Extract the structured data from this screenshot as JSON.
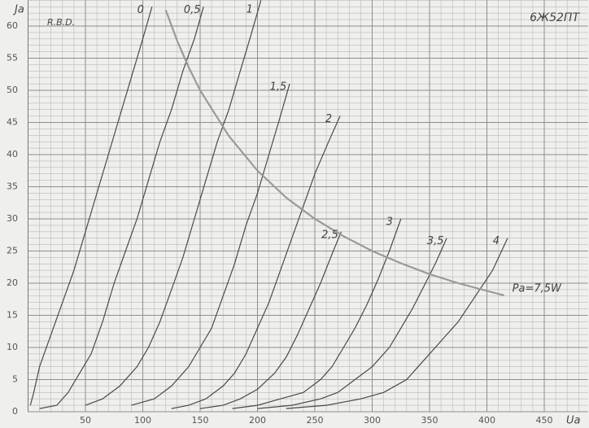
{
  "chart_data": {
    "type": "line",
    "title": "6Ж52ПТ",
    "note": "R.B.D.",
    "y_label": "Ja",
    "x_label": "Ua",
    "xlim": [
      0,
      488
    ],
    "ylim": [
      0,
      64
    ],
    "xticks": [
      50,
      100,
      150,
      200,
      250,
      300,
      350,
      400,
      450
    ],
    "yticks": [
      0,
      5,
      10,
      15,
      20,
      25,
      30,
      35,
      40,
      45,
      50,
      55,
      60
    ],
    "grid": true,
    "series": [
      {
        "name": "0",
        "color": "#4a4a4a",
        "x": [
          2,
          5,
          10,
          20,
          30,
          40,
          50,
          60,
          70,
          80,
          90,
          100,
          108
        ],
        "values": [
          1,
          3,
          7,
          12,
          17,
          22,
          28,
          34,
          40,
          46,
          52,
          58,
          63
        ]
      },
      {
        "name": "0,5",
        "color": "#4a4a4a",
        "x": [
          10,
          25,
          35,
          45,
          55,
          65,
          75,
          85,
          95,
          105,
          115,
          125,
          135,
          145,
          153
        ],
        "values": [
          0.5,
          1,
          3,
          6,
          9,
          14,
          20,
          25,
          30,
          36,
          42,
          47,
          53,
          58,
          63
        ]
      },
      {
        "name": "1",
        "color": "#4a4a4a",
        "x": [
          50,
          65,
          80,
          95,
          105,
          115,
          125,
          135,
          145,
          155,
          165,
          175,
          185,
          195,
          203
        ],
        "values": [
          1,
          2,
          4,
          7,
          10,
          14,
          19,
          24,
          30,
          36,
          42,
          47,
          53,
          59,
          64
        ]
      },
      {
        "name": "1,5",
        "color": "#4a4a4a",
        "x": [
          90,
          110,
          125,
          140,
          150,
          160,
          170,
          180,
          190,
          200,
          210,
          220,
          228
        ],
        "values": [
          1,
          2,
          4,
          7,
          10,
          13,
          18,
          23,
          29,
          34,
          40,
          46,
          51
        ]
      },
      {
        "name": "2",
        "color": "#4a4a4a",
        "x": [
          125,
          140,
          155,
          170,
          180,
          190,
          200,
          210,
          220,
          230,
          240,
          250,
          262,
          272
        ],
        "values": [
          0.5,
          1,
          2,
          4,
          6,
          9,
          13,
          17,
          22,
          27,
          32,
          37,
          42,
          46
        ]
      },
      {
        "name": "2,5",
        "color": "#4a4a4a",
        "x": [
          150,
          170,
          185,
          200,
          215,
          225,
          235,
          245,
          255,
          265,
          273
        ],
        "values": [
          0.5,
          1,
          2,
          3.5,
          6,
          8.5,
          12,
          16,
          20,
          24.5,
          28
        ]
      },
      {
        "name": "3",
        "color": "#4a4a4a",
        "x": [
          178,
          200,
          220,
          240,
          255,
          265,
          275,
          285,
          295,
          305,
          315,
          325
        ],
        "values": [
          0.5,
          1,
          2,
          3,
          5,
          7,
          10,
          13,
          16.5,
          20.5,
          25,
          30
        ]
      },
      {
        "name": "3,5",
        "color": "#4a4a4a",
        "x": [
          200,
          230,
          255,
          270,
          285,
          300,
          315,
          325,
          335,
          345,
          355,
          365
        ],
        "values": [
          0.5,
          1,
          2,
          3,
          5,
          7,
          10,
          13,
          16,
          19.5,
          23,
          27
        ]
      },
      {
        "name": "4",
        "color": "#4a4a4a",
        "x": [
          225,
          260,
          290,
          310,
          330,
          345,
          360,
          375,
          390,
          405,
          418
        ],
        "values": [
          0.5,
          1,
          2,
          3,
          5,
          8,
          11,
          14,
          18,
          22,
          27
        ]
      },
      {
        "name": "Pa=7,5W",
        "color": "#9a9a9a",
        "x": [
          120,
          130,
          140,
          150,
          175,
          200,
          225,
          250,
          275,
          300,
          325,
          350,
          375,
          400,
          415
        ],
        "values": [
          62.5,
          57.7,
          53.6,
          50,
          42.9,
          37.5,
          33.3,
          30,
          27.3,
          25,
          23.1,
          21.4,
          20,
          18.8,
          18.1
        ]
      }
    ]
  }
}
